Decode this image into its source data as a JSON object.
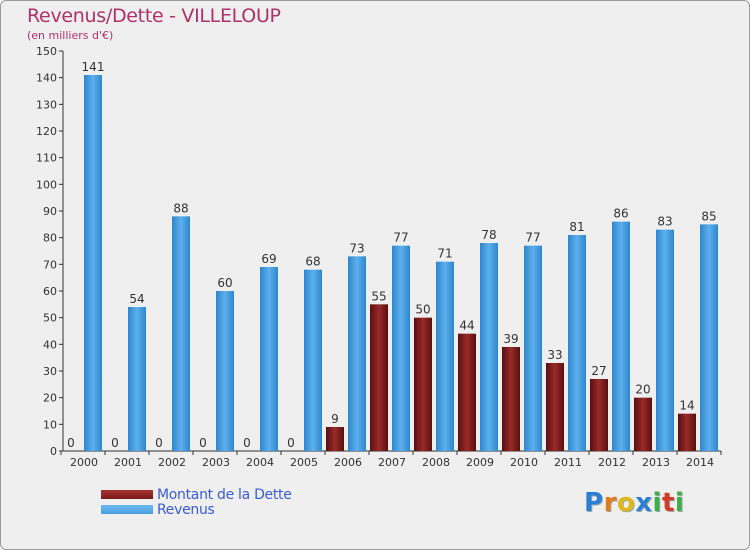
{
  "header": {
    "title": "Revenus/Dette - VILLELOUP",
    "subtitle": "(en milliers d'€)"
  },
  "colors": {
    "dette": "#7a1a1a",
    "revenus": "#4a9fe0",
    "axis": "#333333",
    "grid": "#c8c8c8",
    "title": "#b0306a",
    "legend_text": "#3b5bd6"
  },
  "legend": {
    "dette_label": "Montant de la Dette",
    "revenus_label": "Revenus"
  },
  "logo": {
    "letters": [
      "P",
      "r",
      "o",
      "x",
      "i",
      "t",
      "i"
    ],
    "colors": [
      "#2a7fd4",
      "#e07a1a",
      "#e0b81a",
      "#2a7fd4",
      "#3fae49",
      "#d43a2a",
      "#3fae49"
    ]
  },
  "chart_data": {
    "type": "bar",
    "categories": [
      "2000",
      "2001",
      "2002",
      "2003",
      "2004",
      "2005",
      "2006",
      "2007",
      "2008",
      "2009",
      "2010",
      "2011",
      "2012",
      "2013",
      "2014"
    ],
    "series": [
      {
        "name": "Montant de la Dette",
        "values": [
          0,
          0,
          0,
          0,
          0,
          0,
          9,
          55,
          50,
          44,
          39,
          33,
          27,
          20,
          14
        ]
      },
      {
        "name": "Revenus",
        "values": [
          141,
          54,
          88,
          60,
          69,
          68,
          73,
          77,
          71,
          78,
          77,
          81,
          86,
          83,
          85
        ]
      }
    ],
    "ylim": [
      0,
      150
    ],
    "yticks": [
      0,
      10,
      20,
      30,
      40,
      50,
      60,
      70,
      80,
      90,
      100,
      110,
      120,
      130,
      140,
      150
    ],
    "grid": false,
    "legend_position": "bottom-left"
  }
}
